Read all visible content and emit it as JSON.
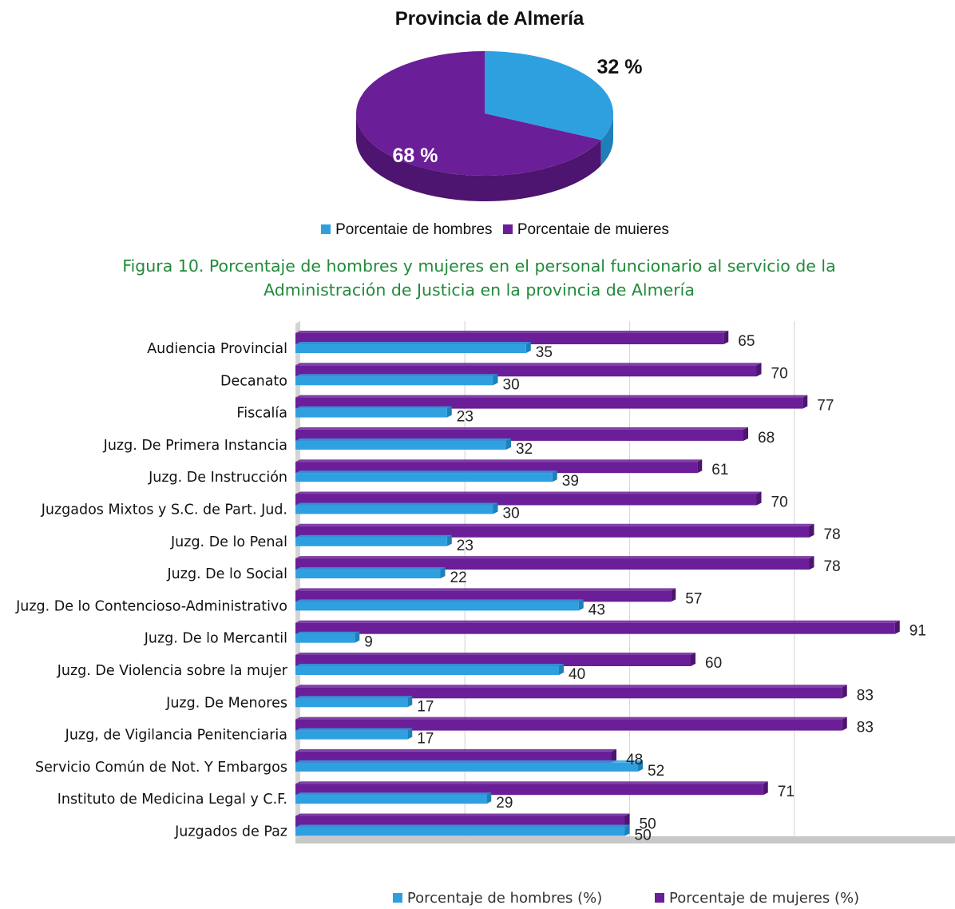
{
  "pie_chart": {
    "title": "Provincia de Almería",
    "slices": [
      {
        "name": "Porcentaie de hombres",
        "value": 32,
        "label": "32 %",
        "color": "#2ea0e0",
        "side_color": "#1f7fb8"
      },
      {
        "name": "Porcentaie de mujeres",
        "value": 68,
        "label": "68 %",
        "color": "#6a1e97",
        "side_color": "#4d1470"
      }
    ],
    "legend": [
      "Porcentaie de hombres",
      "Porcentaie de muieres"
    ]
  },
  "caption": {
    "line1": "Figura 10. Porcentaje de hombres y mujeres en el personal funcionario al servicio de la",
    "line2": "Administración de Justicia en la provincia de Almería",
    "color": "#218a3a"
  },
  "chart_data": {
    "type": "bar",
    "orientation": "horizontal",
    "xlim": [
      0,
      100
    ],
    "grid": true,
    "legend_position": "bottom",
    "categories": [
      "Audiencia Provincial",
      "Decanato",
      "Fiscalía",
      "Juzg. De Primera Instancia",
      "Juzg. De Instrucción",
      "Juzgados Mixtos y S.C. de Part. Jud.",
      "Juzg. De lo Penal",
      "Juzg. De lo Social",
      "Juzg. De lo Contencioso-Administrativo",
      "Juzg. De lo Mercantil",
      "Juzg. De Violencia sobre la mujer",
      "Juzg. De Menores",
      "Juzg, de Vigilancia Penitenciaria",
      "Servicio Común de Not. Y Embargos",
      "Instituto de Medicina Legal y C.F.",
      "Juzgados de Paz"
    ],
    "series": [
      {
        "name": "Porcentaje de mujeres (%)",
        "color": "#6a1e97",
        "values": [
          65,
          70,
          77,
          68,
          61,
          70,
          78,
          78,
          57,
          91,
          60,
          83,
          83,
          48,
          71,
          50
        ]
      },
      {
        "name": "Porcentaje de hombres (%)",
        "color": "#2ea0e0",
        "values": [
          35,
          30,
          23,
          32,
          39,
          30,
          23,
          22,
          43,
          9,
          40,
          17,
          17,
          52,
          29,
          50
        ]
      }
    ],
    "legend": [
      "Porcentaje de hombres (%)",
      "Porcentaje de mujeres (%)"
    ]
  }
}
